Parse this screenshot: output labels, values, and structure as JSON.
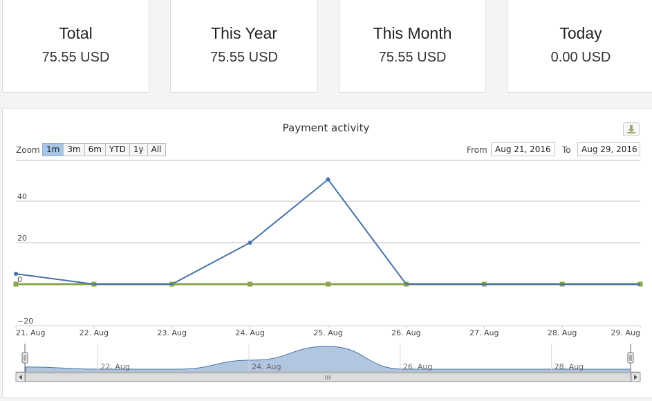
{
  "summary": {
    "total": {
      "label": "Total",
      "value": "75.55 USD"
    },
    "year": {
      "label": "This Year",
      "value": "75.55 USD"
    },
    "month": {
      "label": "This Month",
      "value": "75.55 USD"
    },
    "today": {
      "label": "Today",
      "value": "0.00 USD"
    }
  },
  "chart": {
    "title": "Payment activity",
    "zoom_label": "Zoom",
    "zoom_buttons": [
      "1m",
      "3m",
      "6m",
      "YTD",
      "1y",
      "All"
    ],
    "zoom_active": "1m",
    "from_label": "From",
    "from_value": "Aug 21, 2016",
    "to_label": "To",
    "to_value": "Aug 29, 2016",
    "export_icon": "download-icon",
    "navigator_handle_icon": "grip-icon",
    "colors": {
      "series1": "#4572a7",
      "series2": "#89a54e",
      "navigator_fill": "#b2c6e0"
    }
  },
  "chart_data": {
    "type": "line",
    "title": "Payment activity",
    "x": [
      "21. Aug",
      "22. Aug",
      "23. Aug",
      "24. Aug",
      "25. Aug",
      "26. Aug",
      "27. Aug",
      "28. Aug",
      "29. Aug"
    ],
    "series": [
      {
        "values": [
          5,
          0,
          0,
          20,
          50.5,
          0,
          0,
          0,
          0
        ]
      },
      {
        "values": [
          0,
          0,
          0,
          0,
          0,
          0,
          0,
          0,
          0
        ]
      }
    ],
    "y_ticks": [
      -20,
      0,
      20,
      40
    ],
    "ylim": [
      -20,
      60
    ],
    "grid": true,
    "navigator_ticks": [
      "22. Aug",
      "24. Aug",
      "26. Aug",
      "28. Aug"
    ]
  }
}
